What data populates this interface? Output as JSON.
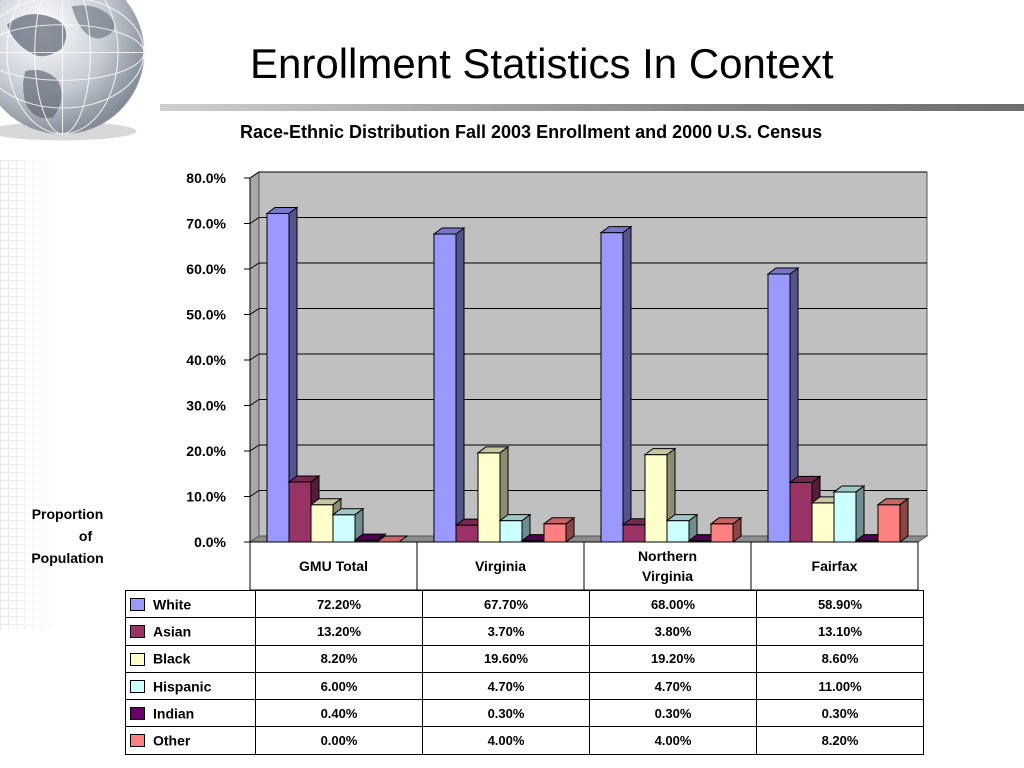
{
  "slide": {
    "title": "Enrollment Statistics In Context"
  },
  "chart_data": {
    "type": "bar",
    "title": "Race-Ethnic Distribution Fall 2003 Enrollment and 2000 U.S. Census",
    "ylabel_lines": [
      "Proportion",
      "of",
      "Population"
    ],
    "categories": [
      "GMU Total",
      "Virginia",
      "Northern Virginia",
      "Fairfax"
    ],
    "category_lines": [
      [
        "GMU Total"
      ],
      [
        "Virginia"
      ],
      [
        "Northern",
        "Virginia"
      ],
      [
        "Fairfax"
      ]
    ],
    "ylim": [
      0,
      80
    ],
    "yticks": [
      "0.0%",
      "10.0%",
      "20.0%",
      "30.0%",
      "40.0%",
      "50.0%",
      "60.0%",
      "70.0%",
      "80.0%"
    ],
    "grid": true,
    "legend": "table-below",
    "series": [
      {
        "name": "White",
        "color": "#9999ff",
        "values": [
          72.2,
          67.7,
          68.0,
          58.9
        ],
        "labels": [
          "72.20%",
          "67.70%",
          "68.00%",
          "58.90%"
        ]
      },
      {
        "name": "Asian",
        "color": "#993366",
        "values": [
          13.2,
          3.7,
          3.8,
          13.1
        ],
        "labels": [
          "13.20%",
          "3.70%",
          "3.80%",
          "13.10%"
        ]
      },
      {
        "name": "Black",
        "color": "#ffffcc",
        "values": [
          8.2,
          19.6,
          19.2,
          8.6
        ],
        "labels": [
          "8.20%",
          "19.60%",
          "19.20%",
          "8.60%"
        ]
      },
      {
        "name": "Hispanic",
        "color": "#ccffff",
        "values": [
          6.0,
          4.7,
          4.7,
          11.0
        ],
        "labels": [
          "6.00%",
          "4.70%",
          "4.70%",
          "11.00%"
        ]
      },
      {
        "name": "Indian",
        "color": "#660066",
        "values": [
          0.4,
          0.3,
          0.3,
          0.3
        ],
        "labels": [
          "0.40%",
          "0.30%",
          "0.30%",
          "0.30%"
        ]
      },
      {
        "name": "Other",
        "color": "#ff8080",
        "values": [
          0.0,
          4.0,
          4.0,
          8.2
        ],
        "labels": [
          "0.00%",
          "4.00%",
          "4.00%",
          "8.20%"
        ]
      }
    ]
  }
}
